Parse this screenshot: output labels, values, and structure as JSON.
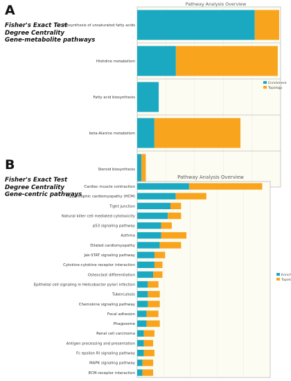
{
  "panel_a": {
    "letter": "A",
    "method_lines": [
      "Fisher's Exact Test",
      "Degree Centrality",
      "Gene-metabolite pathways"
    ]
  },
  "panel_b": {
    "letter": "B",
    "method_lines": [
      "Fisher's Exact Test",
      "Degree Centrality",
      "Gene-centric pathways"
    ]
  },
  "colors": {
    "enrichment": "#1ba9c2",
    "topology": "#f8a51d",
    "plot_bg": "#fdfcf3",
    "frame": "#bcbcbc"
  },
  "chart_data": [
    {
      "type": "bar",
      "orientation": "horizontal",
      "stacked": true,
      "title": "Pathway Analysis Overview",
      "categories": [
        "Biosynthesis of unsaturated fatty acids",
        "Histidine metabolism",
        "Fatty acid biosynthesis",
        "beta-Alanine metabolism",
        "Steroid biosynthesis"
      ],
      "series": [
        {
          "name": "Enrichment",
          "values": [
            0.82,
            0.27,
            0.15,
            0.12,
            0.03
          ]
        },
        {
          "name": "Topology",
          "values": [
            0.17,
            0.71,
            0.0,
            0.6,
            0.03
          ]
        }
      ],
      "xlim": [
        0,
        1
      ],
      "grid": true,
      "legend_position": "right"
    },
    {
      "type": "bar",
      "orientation": "horizontal",
      "stacked": true,
      "title": "Pathway Analysis Overview",
      "categories": [
        "Cardiac muscle contraction",
        "Hypertrophic cardiomyopathy (HCM)",
        "Tight junction",
        "Natural killer cell mediated cytotoxicity",
        "p53 signaling pathway",
        "Asthma",
        "Dilated cardiomyopathy",
        "Jak-STAT signaling pathway",
        "Cytokine-cytokine receptor interaction",
        "Osteoclast differentiation",
        "Epithelial cell signaling in Helicobacter pylori infection",
        "Tuberculosis",
        "Chemokine signaling pathway",
        "Focal adhesion",
        "Phagosome",
        "Renal cell carcinoma",
        "Antigen processing and presentation",
        "Fc epsilon RI signaling pathway",
        "MAPK signaling pathway",
        "ECM-receptor interaction"
      ],
      "series": [
        {
          "name": "Enrichment",
          "values": [
            0.39,
            0.29,
            0.25,
            0.23,
            0.18,
            0.18,
            0.17,
            0.13,
            0.13,
            0.12,
            0.08,
            0.08,
            0.08,
            0.07,
            0.07,
            0.05,
            0.05,
            0.05,
            0.04,
            0.04
          ]
        },
        {
          "name": "Topology",
          "values": [
            0.55,
            0.23,
            0.08,
            0.1,
            0.08,
            0.19,
            0.16,
            0.08,
            0.06,
            0.07,
            0.08,
            0.09,
            0.09,
            0.09,
            0.1,
            0.08,
            0.07,
            0.08,
            0.08,
            0.08
          ]
        }
      ],
      "xlim": [
        0,
        1
      ],
      "grid": true,
      "legend_position": "right"
    }
  ]
}
